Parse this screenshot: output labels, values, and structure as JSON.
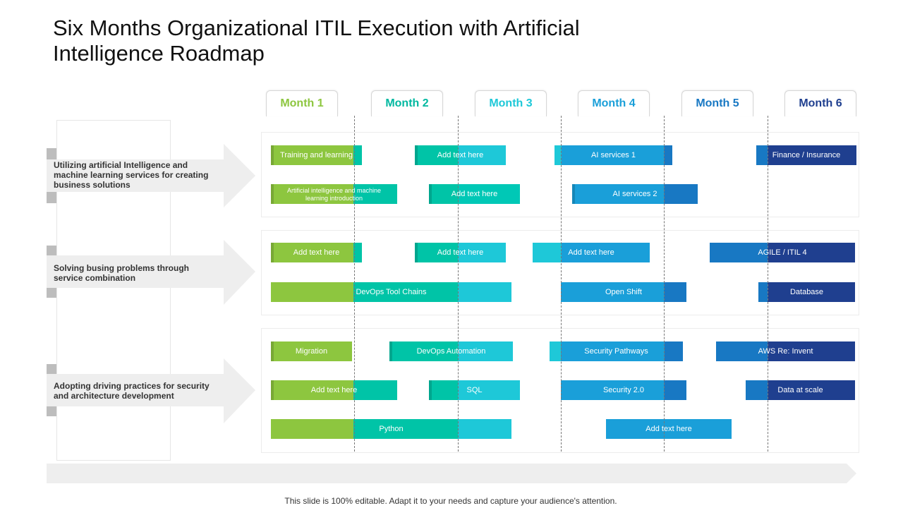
{
  "title": {
    "line1": "Six Months Organizational ITIL Execution with Artificial",
    "line2": "Intelligence Roadmap"
  },
  "months": [
    {
      "label": "Month 1",
      "color": "#8dc63f"
    },
    {
      "label": "Month 2",
      "color": "#00c4a7"
    },
    {
      "label": "Month 3",
      "color": "#1ec8d8"
    },
    {
      "label": "Month 4",
      "color": "#1a9fd9"
    },
    {
      "label": "Month 5",
      "color": "#1878c3"
    },
    {
      "label": "Month 6",
      "color": "#1f3f8f"
    }
  ],
  "categories": [
    {
      "label": "Utilizing artificial Intelligence and machine learning services for creating business solutions"
    },
    {
      "label": "Solving busing problems through service combination"
    },
    {
      "label": "Adopting driving practices for security and architecture development"
    }
  ],
  "tasks": [
    {
      "label": "Training and learning"
    },
    {
      "label": "Add text here"
    },
    {
      "label": "AI services 1"
    },
    {
      "label": "Finance / Insurance"
    },
    {
      "label": "Artificial intelligence and machine learning introduction"
    },
    {
      "label": "Add text here"
    },
    {
      "label": "AI services 2"
    },
    {
      "label": "Add text here"
    },
    {
      "label": "Add text here"
    },
    {
      "label": "Add text here"
    },
    {
      "label": "AGILE / ITIL 4"
    },
    {
      "label": "DevOps Tool Chains"
    },
    {
      "label": "Open Shift"
    },
    {
      "label": "Database"
    },
    {
      "label": "Migration"
    },
    {
      "label": "DevOps Automation"
    },
    {
      "label": "Security Pathways"
    },
    {
      "label": "AWS Re: Invent"
    },
    {
      "label": "Add text here"
    },
    {
      "label": "SQL"
    },
    {
      "label": "Security 2.0"
    },
    {
      "label": "Data at scale"
    },
    {
      "label": "Python"
    },
    {
      "label": "Add text here"
    }
  ],
  "footer": "This slide is 100% editable. Adapt it to your needs and capture your audience's attention."
}
